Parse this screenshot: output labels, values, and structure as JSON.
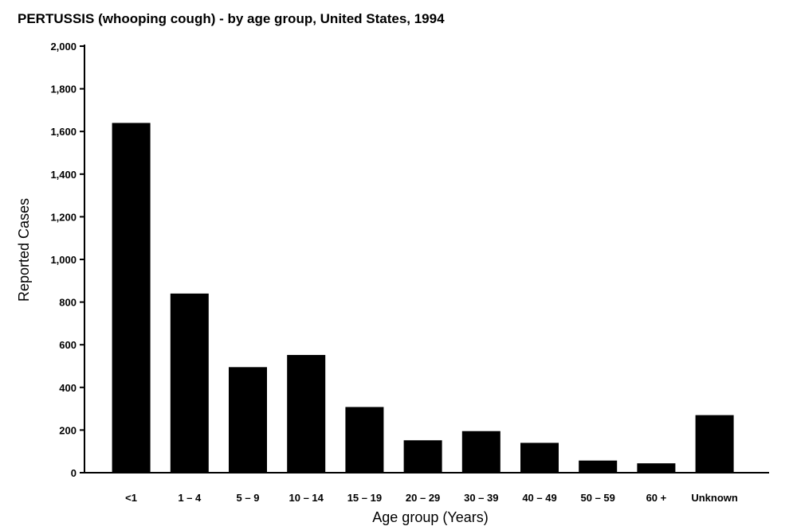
{
  "chart_data": {
    "type": "bar",
    "title": "PERTUSSIS (whooping cough) - by age group, United States, 1994",
    "xlabel": "Age group (Years)",
    "ylabel": "Reported Cases",
    "categories": [
      "<1",
      "1 – 4",
      "5 – 9",
      "10 – 14",
      "15 – 19",
      "20 – 29",
      "30 – 39",
      "40 – 49",
      "50 – 59",
      "60 +",
      "Unknown"
    ],
    "values": [
      1640,
      840,
      495,
      552,
      308,
      152,
      195,
      140,
      57,
      44,
      270
    ],
    "ylim": [
      0,
      2000
    ],
    "yticks": [
      0,
      200,
      400,
      600,
      800,
      1000,
      1200,
      1400,
      1600,
      1800,
      2000
    ],
    "ytick_labels": [
      "0",
      "200",
      "400",
      "600",
      "800",
      "1,000",
      "1,200",
      "1,400",
      "1,600",
      "1,800",
      "2,000"
    ],
    "bar_color": "#000000",
    "grid": false,
    "legend": "none"
  }
}
